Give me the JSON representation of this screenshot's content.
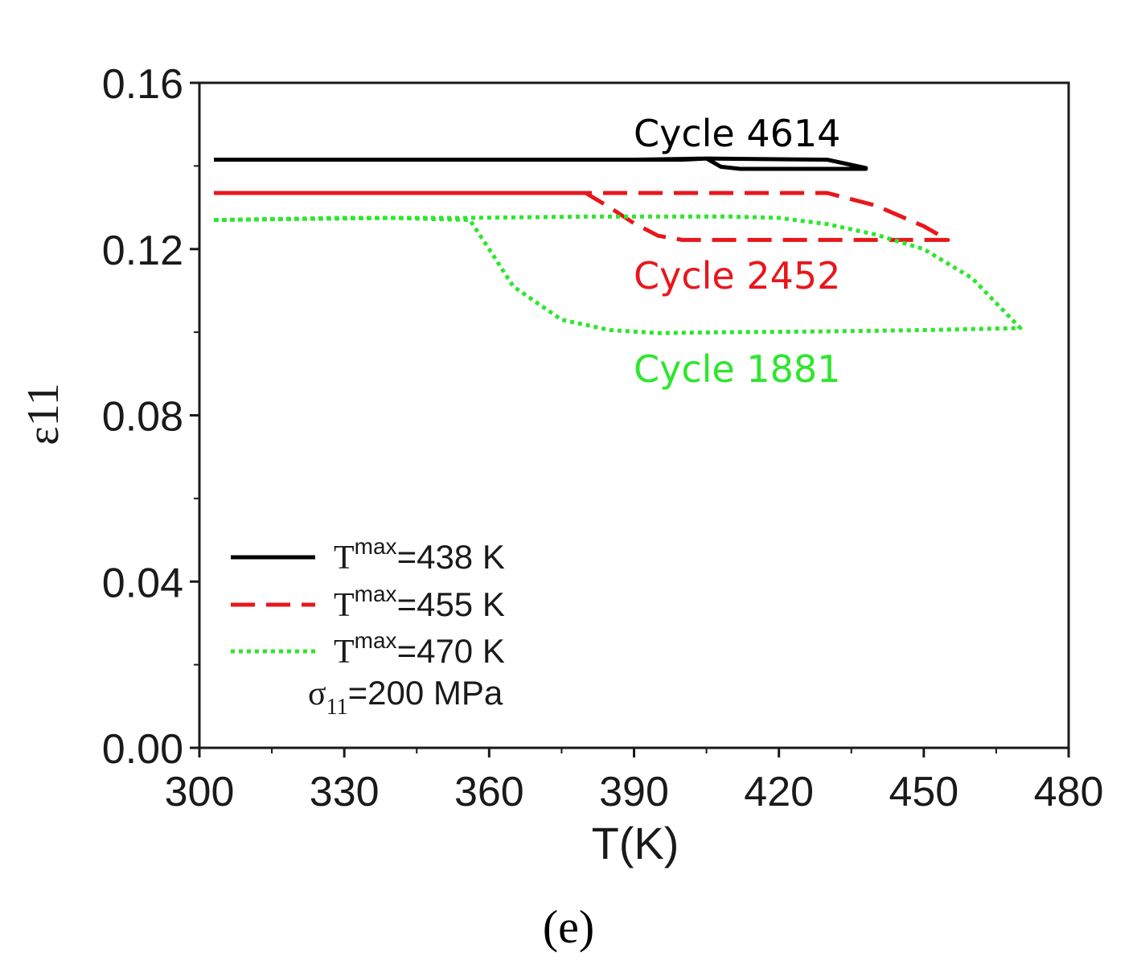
{
  "chart_data": {
    "type": "line",
    "xlabel": "T(K)",
    "ylabel": "ε11",
    "xlim": [
      300,
      480
    ],
    "ylim": [
      0.0,
      0.16
    ],
    "xticks": [
      300,
      330,
      360,
      390,
      420,
      450,
      480
    ],
    "xtick_labels": [
      "300",
      "330",
      "360",
      "390",
      "420",
      "450",
      "480"
    ],
    "yticks": [
      0.0,
      0.04,
      0.08,
      0.12,
      0.16
    ],
    "ytick_labels": [
      "0.00",
      "0.04",
      "0.08",
      "0.12",
      "0.16"
    ],
    "grid": false,
    "legend_position": "bottom-left",
    "panel_label": "(e)",
    "series": [
      {
        "name": "Tmax=438 K",
        "tmax_label": "=438 K",
        "color": "#000000",
        "style": "solid",
        "annotation": "Cycle 4614",
        "x": [
          303,
          350,
          400,
          405,
          430,
          438,
          438,
          420,
          412,
          408,
          405,
          390,
          350,
          303
        ],
        "y": [
          0.1415,
          0.1415,
          0.1415,
          0.1418,
          0.1415,
          0.1395,
          0.1393,
          0.1393,
          0.1393,
          0.1398,
          0.1418,
          0.1415,
          0.1415,
          0.1415
        ]
      },
      {
        "name": "Tmax=455 K",
        "tmax_label": "=455 K",
        "color": "#e8171c",
        "style": "dashed",
        "annotation": "Cycle 2452",
        "x": [
          303,
          350,
          380,
          400,
          430,
          440,
          450,
          455,
          440,
          420,
          400,
          395,
          390,
          385,
          380,
          350,
          303
        ],
        "y": [
          0.1335,
          0.1335,
          0.1335,
          0.1335,
          0.1335,
          0.1305,
          0.1255,
          0.1222,
          0.1222,
          0.1222,
          0.1222,
          0.1232,
          0.1262,
          0.13,
          0.1335,
          0.1335,
          0.1335
        ]
      },
      {
        "name": "Tmax=470 K",
        "tmax_label": "=470 K",
        "color": "#2ee62e",
        "style": "dotted",
        "annotation": "Cycle 1881",
        "x": [
          303,
          330,
          355,
          380,
          410,
          420,
          430,
          440,
          450,
          460,
          470,
          450,
          430,
          410,
          395,
          385,
          375,
          365,
          360,
          356,
          340,
          303
        ],
        "y": [
          0.127,
          0.1275,
          0.1275,
          0.1278,
          0.1278,
          0.1275,
          0.126,
          0.1235,
          0.12,
          0.113,
          0.101,
          0.1005,
          0.1002,
          0.1,
          0.0998,
          0.1005,
          0.103,
          0.111,
          0.12,
          0.127,
          0.1275,
          0.127
        ]
      }
    ],
    "legend_symbol": "T",
    "legend_superscript": "max",
    "stress_label": {
      "symbol": "σ",
      "subscript": "11",
      "text": "=200 MPa"
    }
  }
}
